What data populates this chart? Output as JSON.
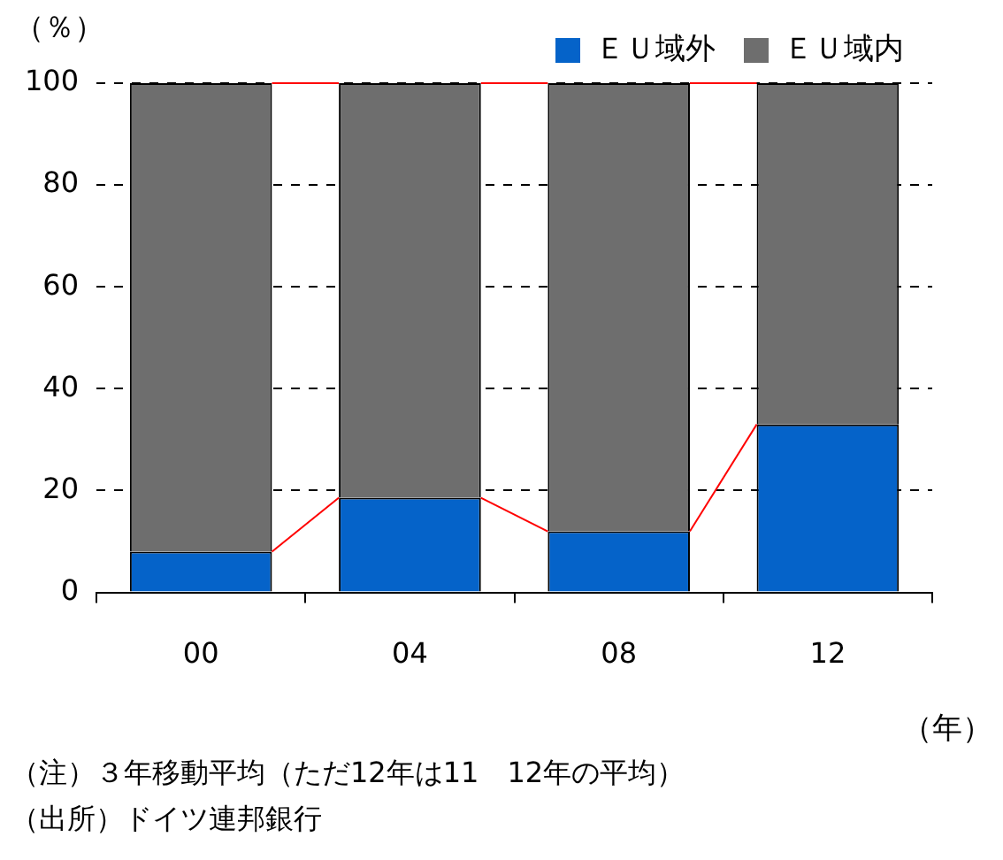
{
  "chart_data": {
    "type": "bar",
    "stacked": true,
    "ylabel": "（％）",
    "xlabel": "（年）",
    "categories": [
      "00",
      "04",
      "08",
      "12"
    ],
    "series": [
      {
        "name": "ＥＵ域外",
        "color": "#0563c9",
        "values": [
          8,
          18.6,
          12,
          33
        ]
      },
      {
        "name": "ＥＵ域内",
        "color": "#6e6e6e",
        "values": [
          92,
          81.4,
          88,
          67
        ]
      }
    ],
    "ylim": [
      0,
      100
    ],
    "yticks": [
      0,
      20,
      40,
      60,
      80,
      100
    ],
    "grid": "y",
    "legend": "top right",
    "annotations": [
      "（注）３年移動平均（ただ12年は11　12年の平均）",
      "（出所）ドイツ連邦銀行"
    ]
  }
}
